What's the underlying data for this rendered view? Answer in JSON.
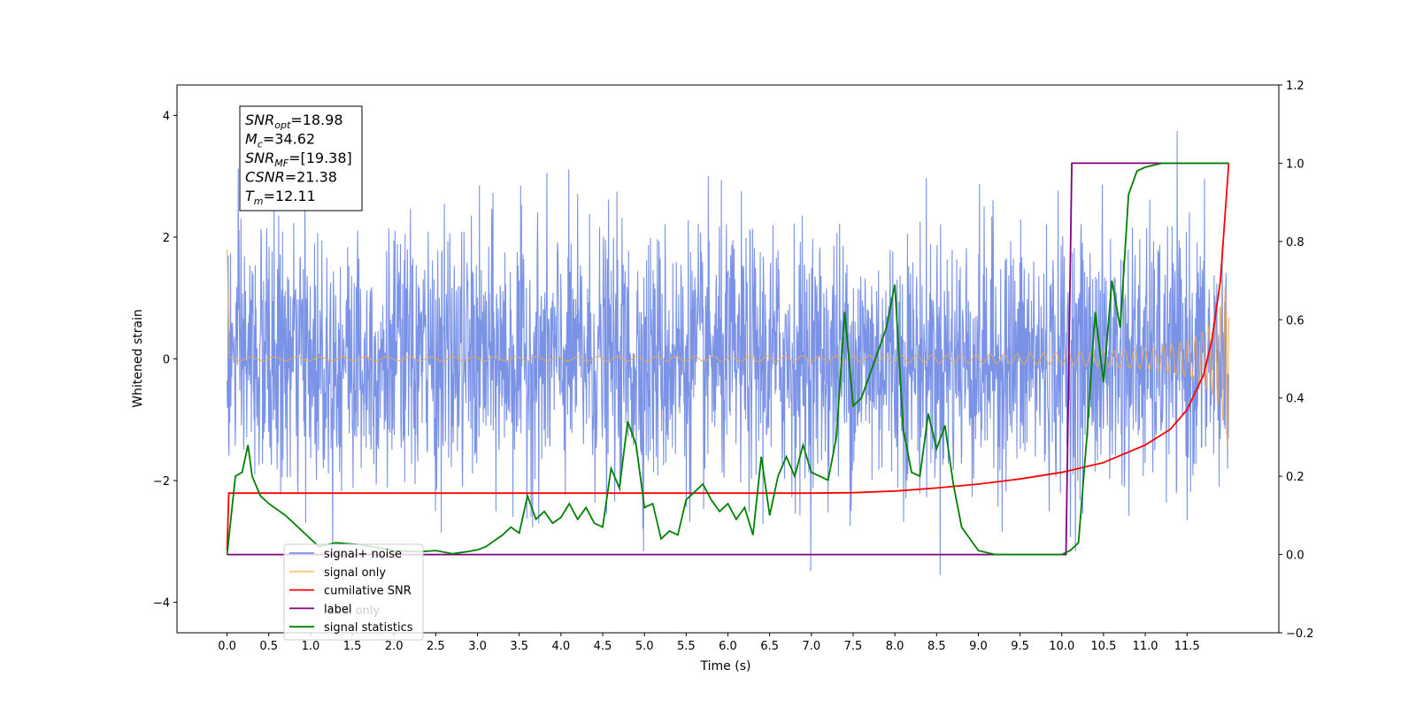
{
  "chart_data": {
    "type": "line",
    "xlabel": "Time (s)",
    "ylabel": "Whitened strain",
    "xlim": [
      -0.6,
      12.6
    ],
    "ylim": [
      -4.5,
      4.5
    ],
    "y2lim": [
      -0.2,
      1.2
    ],
    "x_ticks": [
      "0.0",
      "0.5",
      "1.0",
      "1.5",
      "2.0",
      "2.5",
      "3.0",
      "3.5",
      "4.0",
      "4.5",
      "5.0",
      "5.5",
      "6.0",
      "6.5",
      "7.0",
      "7.5",
      "8.0",
      "8.5",
      "9.0",
      "9.5",
      "10.0",
      "10.5",
      "11.0",
      "11.5"
    ],
    "y_ticks": [
      "4",
      "2",
      "0",
      "−2",
      "−4"
    ],
    "y2_ticks": [
      "1.2",
      "1.0",
      "0.8",
      "0.6",
      "0.4",
      "0.2",
      "0.0",
      "−0.2"
    ],
    "info_box": {
      "lines": [
        {
          "name": "SNR",
          "sub": "opt",
          "value": "=18.98"
        },
        {
          "name": "M",
          "sub": "c",
          "value": "=34.62"
        },
        {
          "name": "SNR",
          "sub": "MF",
          "value": "=[19.38]"
        },
        {
          "name": "CSNR",
          "sub": "",
          "value": "=21.38"
        },
        {
          "name": "T",
          "sub": "m",
          "value": "=12.11"
        }
      ]
    },
    "legend": {
      "placement": "lower-left",
      "entries": [
        {
          "label": "signal+ noise",
          "color": "#7b93e6"
        },
        {
          "label": "signal only",
          "color": "#ffc877"
        },
        {
          "label": "cumilative SNR",
          "color": "#ff0000"
        },
        {
          "label": "label",
          "color": "#800080"
        },
        {
          "label": "signal statistics",
          "color": "#008000"
        }
      ],
      "ghost_text": "label only"
    },
    "series": [
      {
        "name": "signal+ noise",
        "axis": "left",
        "color": "#7b93e6",
        "x_range": [
          0.0,
          12.0
        ],
        "noise_sigma": 1.0,
        "y_extent": [
          -4.1,
          4.1
        ]
      },
      {
        "name": "signal only",
        "axis": "left",
        "color": "#e8a85a",
        "x_range": [
          0.0,
          12.0
        ],
        "envelope": {
          "t_merger": 12.11,
          "amp_at_7": 0.02,
          "amp_at_10": 0.12,
          "amp_at_11": 0.25,
          "amp_at_11_5": 0.5,
          "amp_at_11_9": 2.2
        }
      },
      {
        "name": "cumilative SNR",
        "axis": "right",
        "color": "#ff0000",
        "x": [
          0.0,
          0.02,
          1.0,
          4.0,
          7.0,
          7.5,
          8.0,
          8.5,
          9.0,
          9.5,
          10.0,
          10.5,
          11.0,
          11.3,
          11.5,
          11.7,
          11.8,
          11.9,
          11.95,
          12.0
        ],
        "y": [
          0.01,
          0.157,
          0.157,
          0.157,
          0.157,
          0.158,
          0.162,
          0.17,
          0.18,
          0.193,
          0.21,
          0.235,
          0.28,
          0.32,
          0.37,
          0.46,
          0.55,
          0.7,
          0.85,
          1.0
        ]
      },
      {
        "name": "label",
        "axis": "right",
        "color": "#800080",
        "x": [
          0.0,
          10.05,
          10.12,
          12.0
        ],
        "y": [
          0.0,
          0.0,
          1.0,
          1.0
        ]
      },
      {
        "name": "signal statistics",
        "axis": "right",
        "color": "#008000",
        "x": [
          0.0,
          0.1,
          0.18,
          0.25,
          0.3,
          0.4,
          0.5,
          0.7,
          0.8,
          1.0,
          1.1,
          1.3,
          1.6,
          2.0,
          2.3,
          2.5,
          2.7,
          2.9,
          3.0,
          3.1,
          3.3,
          3.4,
          3.5,
          3.6,
          3.7,
          3.8,
          3.9,
          4.0,
          4.1,
          4.2,
          4.3,
          4.4,
          4.5,
          4.6,
          4.7,
          4.8,
          4.9,
          5.0,
          5.1,
          5.2,
          5.3,
          5.4,
          5.5,
          5.6,
          5.7,
          5.8,
          5.9,
          6.0,
          6.1,
          6.2,
          6.3,
          6.4,
          6.5,
          6.6,
          6.7,
          6.8,
          6.9,
          7.0,
          7.1,
          7.2,
          7.3,
          7.4,
          7.5,
          7.6,
          7.7,
          7.8,
          7.9,
          8.0,
          8.1,
          8.2,
          8.3,
          8.4,
          8.5,
          8.6,
          8.7,
          8.8,
          9.0,
          9.2,
          9.4,
          9.6,
          10.0,
          10.1,
          10.2,
          10.3,
          10.4,
          10.5,
          10.6,
          10.7,
          10.8,
          10.9,
          11.0,
          11.2,
          11.5,
          12.0
        ],
        "y": [
          0.0,
          0.2,
          0.21,
          0.28,
          0.2,
          0.15,
          0.13,
          0.1,
          0.08,
          0.04,
          0.02,
          0.03,
          0.025,
          0.01,
          0.007,
          0.01,
          0.002,
          0.008,
          0.012,
          0.02,
          0.05,
          0.07,
          0.055,
          0.15,
          0.09,
          0.11,
          0.08,
          0.095,
          0.13,
          0.09,
          0.12,
          0.08,
          0.07,
          0.22,
          0.17,
          0.34,
          0.28,
          0.12,
          0.13,
          0.04,
          0.06,
          0.05,
          0.14,
          0.16,
          0.18,
          0.14,
          0.11,
          0.13,
          0.09,
          0.12,
          0.05,
          0.25,
          0.1,
          0.2,
          0.25,
          0.2,
          0.28,
          0.21,
          0.2,
          0.19,
          0.3,
          0.62,
          0.38,
          0.4,
          0.46,
          0.52,
          0.58,
          0.69,
          0.32,
          0.21,
          0.2,
          0.36,
          0.27,
          0.33,
          0.18,
          0.07,
          0.01,
          0.0,
          0.0,
          0.0,
          0.0,
          0.01,
          0.03,
          0.3,
          0.62,
          0.44,
          0.7,
          0.58,
          0.92,
          0.98,
          0.99,
          1.0,
          1.0,
          1.0
        ]
      }
    ]
  }
}
